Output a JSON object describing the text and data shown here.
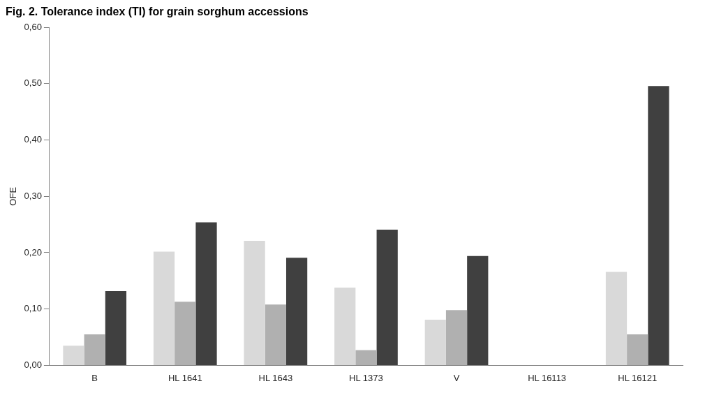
{
  "chart_data": {
    "type": "bar",
    "title": "Fig. 2. Tolerance index (TI) for grain sorghum accessions",
    "ylabel": "OFE",
    "categories": [
      "B",
      "HL 1641",
      "HL 1643",
      "HL 1373",
      "V",
      "HL 16113",
      "HL 16121"
    ],
    "series": [
      {
        "color": "#d9d9d9",
        "values": [
          0.035,
          0.202,
          0.221,
          0.138,
          0.081,
          0,
          0.166
        ]
      },
      {
        "color": "#b0b0b0",
        "values": [
          0.055,
          0.113,
          0.108,
          0.027,
          0.098,
          0,
          0.055
        ]
      },
      {
        "color": "#404040",
        "values": [
          0.132,
          0.254,
          0.191,
          0.241,
          0.194,
          0,
          0.496
        ]
      }
    ],
    "ylim": [
      0,
      0.6
    ],
    "yticks": [
      {
        "value": 0,
        "label": "0,00"
      },
      {
        "value": 0.1,
        "label": "0,10"
      },
      {
        "value": 0.2,
        "label": "0,20"
      },
      {
        "value": 0.3,
        "label": "0,30"
      },
      {
        "value": 0.4,
        "label": "0,40"
      },
      {
        "value": 0.5,
        "label": "0,50"
      },
      {
        "value": 0.6,
        "label": "0,60"
      }
    ],
    "grid": false,
    "legend": false
  }
}
